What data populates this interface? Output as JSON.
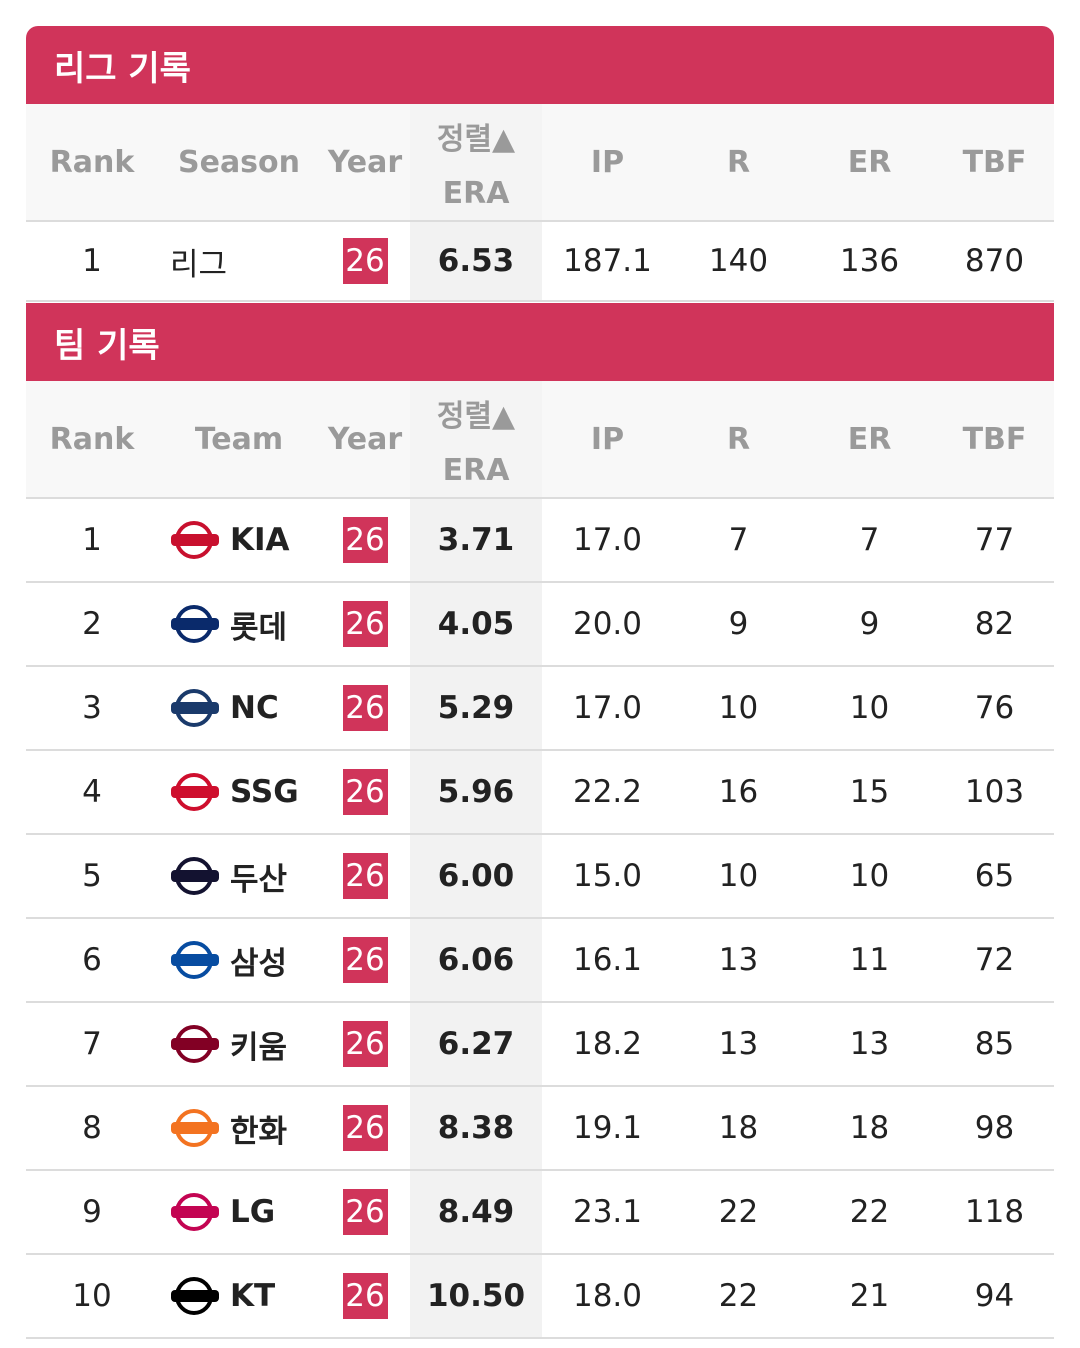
{
  "league": {
    "title": "리그 기록",
    "columns": [
      "Rank",
      "Season",
      "Year",
      "ERA",
      "IP",
      "R",
      "ER",
      "TBF"
    ],
    "sort_label": "정렬▲",
    "rows": [
      [
        "1",
        "리그",
        "26",
        "6.53",
        "187.1",
        "140",
        "136",
        "870"
      ]
    ]
  },
  "team": {
    "title": "팀 기록",
    "columns": [
      "Rank",
      "Team",
      "Year",
      "ERA",
      "IP",
      "R",
      "ER",
      "TBF"
    ],
    "sort_label": "정렬▲",
    "rows": [
      [
        "1",
        "KIA",
        "26",
        "3.71",
        "17.0",
        "7",
        "7",
        "77"
      ],
      [
        "2",
        "롯데",
        "26",
        "4.05",
        "20.0",
        "9",
        "9",
        "82"
      ],
      [
        "3",
        "NC",
        "26",
        "5.29",
        "17.0",
        "10",
        "10",
        "76"
      ],
      [
        "4",
        "SSG",
        "26",
        "5.96",
        "22.2",
        "16",
        "15",
        "103"
      ],
      [
        "5",
        "두산",
        "26",
        "6.00",
        "15.0",
        "10",
        "10",
        "65"
      ],
      [
        "6",
        "삼성",
        "26",
        "6.06",
        "16.1",
        "13",
        "11",
        "72"
      ],
      [
        "7",
        "키움",
        "26",
        "6.27",
        "18.2",
        "13",
        "13",
        "85"
      ],
      [
        "8",
        "한화",
        "26",
        "8.38",
        "19.1",
        "18",
        "18",
        "98"
      ],
      [
        "9",
        "LG",
        "26",
        "8.49",
        "23.1",
        "22",
        "22",
        "118"
      ],
      [
        "10",
        "KT",
        "26",
        "10.50",
        "18.0",
        "22",
        "21",
        "94"
      ]
    ]
  }
}
